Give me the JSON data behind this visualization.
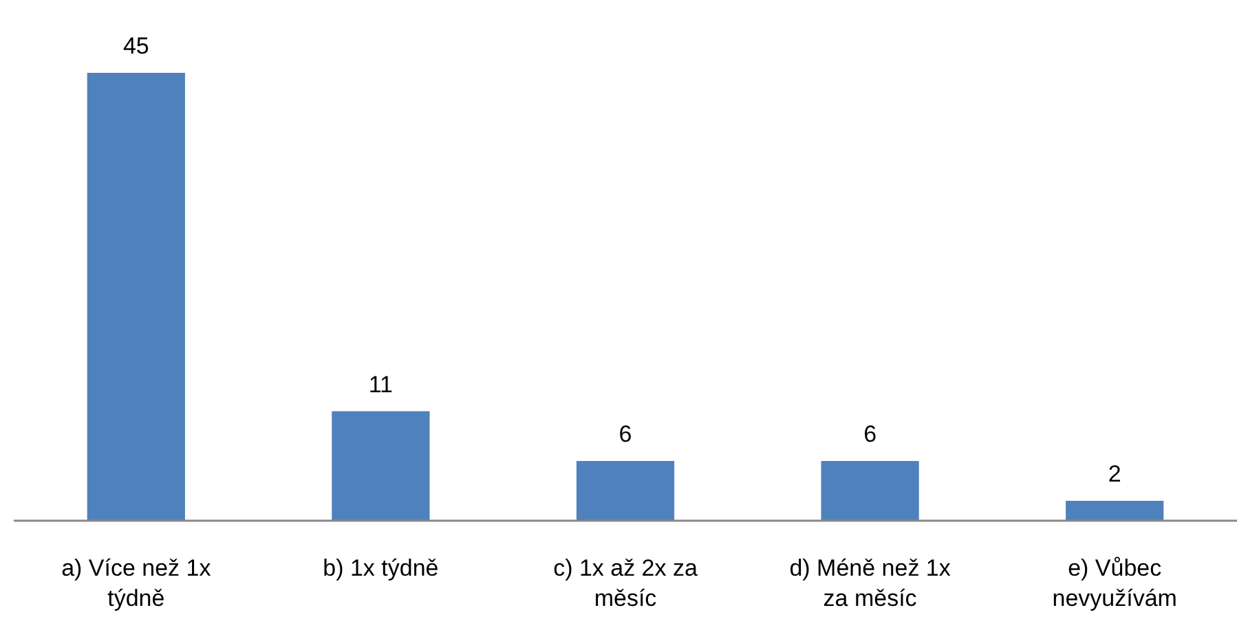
{
  "chart_data": {
    "type": "bar",
    "categories": [
      "a) Více než 1x týdně",
      "b) 1x týdně",
      "c) 1x až 2x za měsíc",
      "d) Méně než 1x za měsíc",
      "e) Vůbec nevyužívám"
    ],
    "values": [
      45,
      11,
      6,
      6,
      2
    ],
    "color": "#4f81bd",
    "data_labels": true
  }
}
